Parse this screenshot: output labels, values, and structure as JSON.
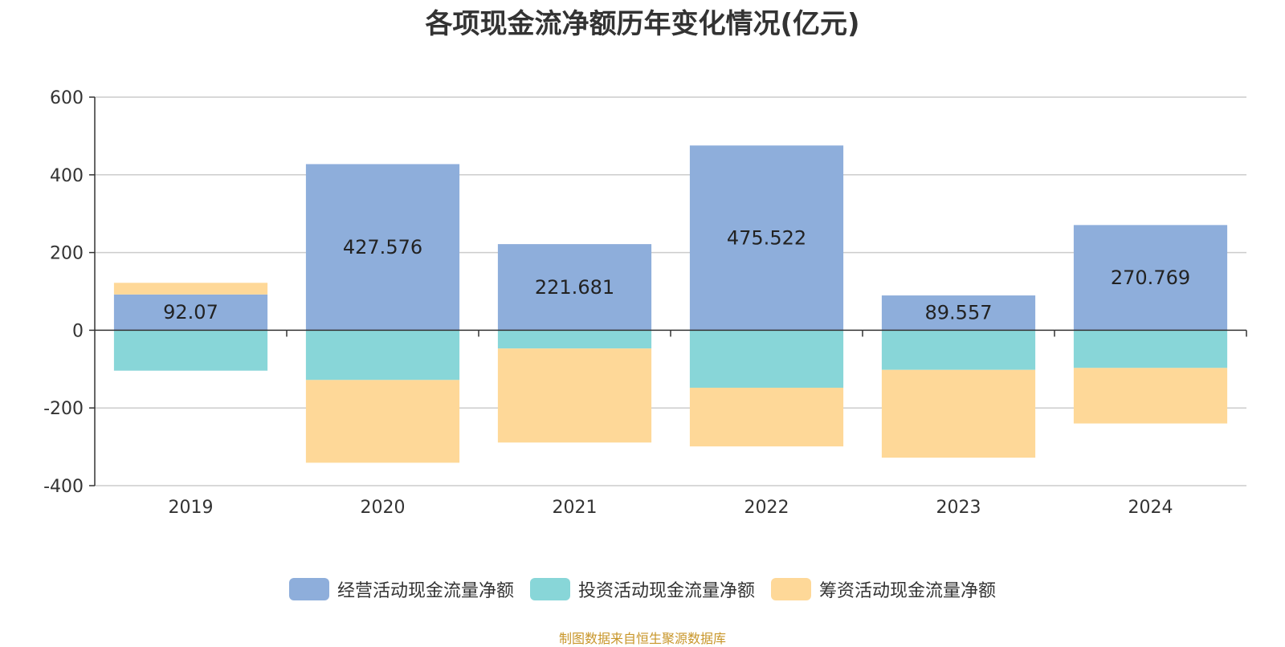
{
  "chart_data": {
    "type": "bar",
    "stacked": true,
    "title": "各项现金流净额历年变化情况(亿元)",
    "categories": [
      "2019",
      "2020",
      "2021",
      "2022",
      "2023",
      "2024"
    ],
    "ylim": [
      -400,
      600
    ],
    "yticks": [
      -400,
      -200,
      0,
      200,
      400,
      600
    ],
    "grid": true,
    "legend_position": "bottom",
    "series": [
      {
        "name": "经营活动现金流量净额",
        "color": "#8eaedb",
        "values": [
          92.07,
          427.576,
          221.681,
          475.522,
          89.557,
          270.769
        ],
        "show_labels": true
      },
      {
        "name": "投资活动现金流量净额",
        "color": "#88d6d8",
        "values": [
          -104,
          -128,
          -47,
          -148,
          -102,
          -97
        ],
        "show_labels": false
      },
      {
        "name": "筹资活动现金流量净额",
        "color": "#fed898",
        "values": [
          30,
          -213,
          -242,
          -151,
          -226,
          -143
        ],
        "show_labels": false
      }
    ]
  },
  "source_note": "制图数据来自恒生聚源数据库"
}
